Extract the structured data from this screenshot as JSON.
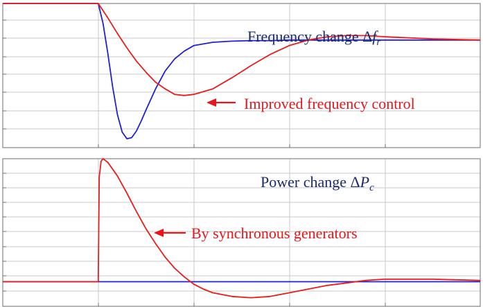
{
  "colors": {
    "series_a": "#1f1fd6",
    "series_b": "#ea1b1b",
    "label_blue": "#1a2a6b",
    "label_red": "#e8151b",
    "grid": "#c8c8c8",
    "axis": "#6e6e6e"
  },
  "chart_data": [
    {
      "type": "line",
      "title": "",
      "xlabel": "",
      "ylabel": "",
      "xlim": [
        0,
        5
      ],
      "ylim": [
        -1.0,
        0.3
      ],
      "grid": true,
      "annotations": {
        "top_label_text": "Frequency change Δ",
        "top_label_var": "f",
        "top_label_sub": "r",
        "arrow_label": "Improved frequency control"
      },
      "series": [
        {
          "color": "#1f1fd6",
          "x": [
            0,
            1.0,
            1.05,
            1.1,
            1.15,
            1.2,
            1.25,
            1.3,
            1.35,
            1.4,
            1.45,
            1.5,
            1.6,
            1.7,
            1.8,
            1.9,
            2.0,
            2.2,
            2.4,
            2.6,
            2.8,
            3.0,
            3.5,
            4.0,
            5.0
          ],
          "y": [
            0.3,
            0.3,
            0.12,
            -0.15,
            -0.45,
            -0.7,
            -0.86,
            -0.92,
            -0.91,
            -0.85,
            -0.76,
            -0.66,
            -0.47,
            -0.31,
            -0.2,
            -0.13,
            -0.08,
            -0.05,
            -0.04,
            -0.035,
            -0.035,
            -0.03,
            -0.03,
            -0.03,
            -0.03
          ]
        },
        {
          "color": "#ea1b1b",
          "x": [
            0,
            1.0,
            1.1,
            1.2,
            1.3,
            1.4,
            1.5,
            1.6,
            1.7,
            1.8,
            1.9,
            2.0,
            2.2,
            2.4,
            2.6,
            2.8,
            3.0,
            3.2,
            3.4,
            3.6,
            3.8,
            4.0,
            4.5,
            5.0
          ],
          "y": [
            0.3,
            0.3,
            0.17,
            0.03,
            -0.1,
            -0.22,
            -0.32,
            -0.41,
            -0.47,
            -0.52,
            -0.53,
            -0.52,
            -0.47,
            -0.37,
            -0.26,
            -0.16,
            -0.08,
            -0.03,
            0.0,
            0.01,
            0.01,
            0.0,
            -0.02,
            -0.03
          ]
        }
      ]
    },
    {
      "type": "line",
      "title": "",
      "xlabel": "",
      "ylabel": "",
      "xlim": [
        0,
        5
      ],
      "ylim": [
        -0.2,
        1.0
      ],
      "grid": true,
      "annotations": {
        "top_label_text": "Power change Δ",
        "top_label_var": "P",
        "top_label_sub": "c",
        "arrow_label": "By synchronous generators"
      },
      "series": [
        {
          "color": "#1f1fd6",
          "x": [
            0,
            1.0,
            5.0
          ],
          "y": [
            0,
            0,
            0
          ]
        },
        {
          "color": "#ea1b1b",
          "x": [
            0,
            1.0,
            1.01,
            1.03,
            1.05,
            1.1,
            1.2,
            1.3,
            1.4,
            1.5,
            1.6,
            1.7,
            1.8,
            1.9,
            2.0,
            2.1,
            2.2,
            2.4,
            2.6,
            2.8,
            3.0,
            3.2,
            3.4,
            3.6,
            3.8,
            4.0,
            4.5,
            5.0
          ],
          "y": [
            0,
            0,
            0.85,
            0.98,
            1.0,
            0.97,
            0.86,
            0.72,
            0.57,
            0.43,
            0.31,
            0.2,
            0.11,
            0.04,
            -0.02,
            -0.06,
            -0.09,
            -0.12,
            -0.13,
            -0.12,
            -0.09,
            -0.06,
            -0.03,
            -0.01,
            0.01,
            0.02,
            0.02,
            0.01
          ]
        }
      ]
    }
  ]
}
